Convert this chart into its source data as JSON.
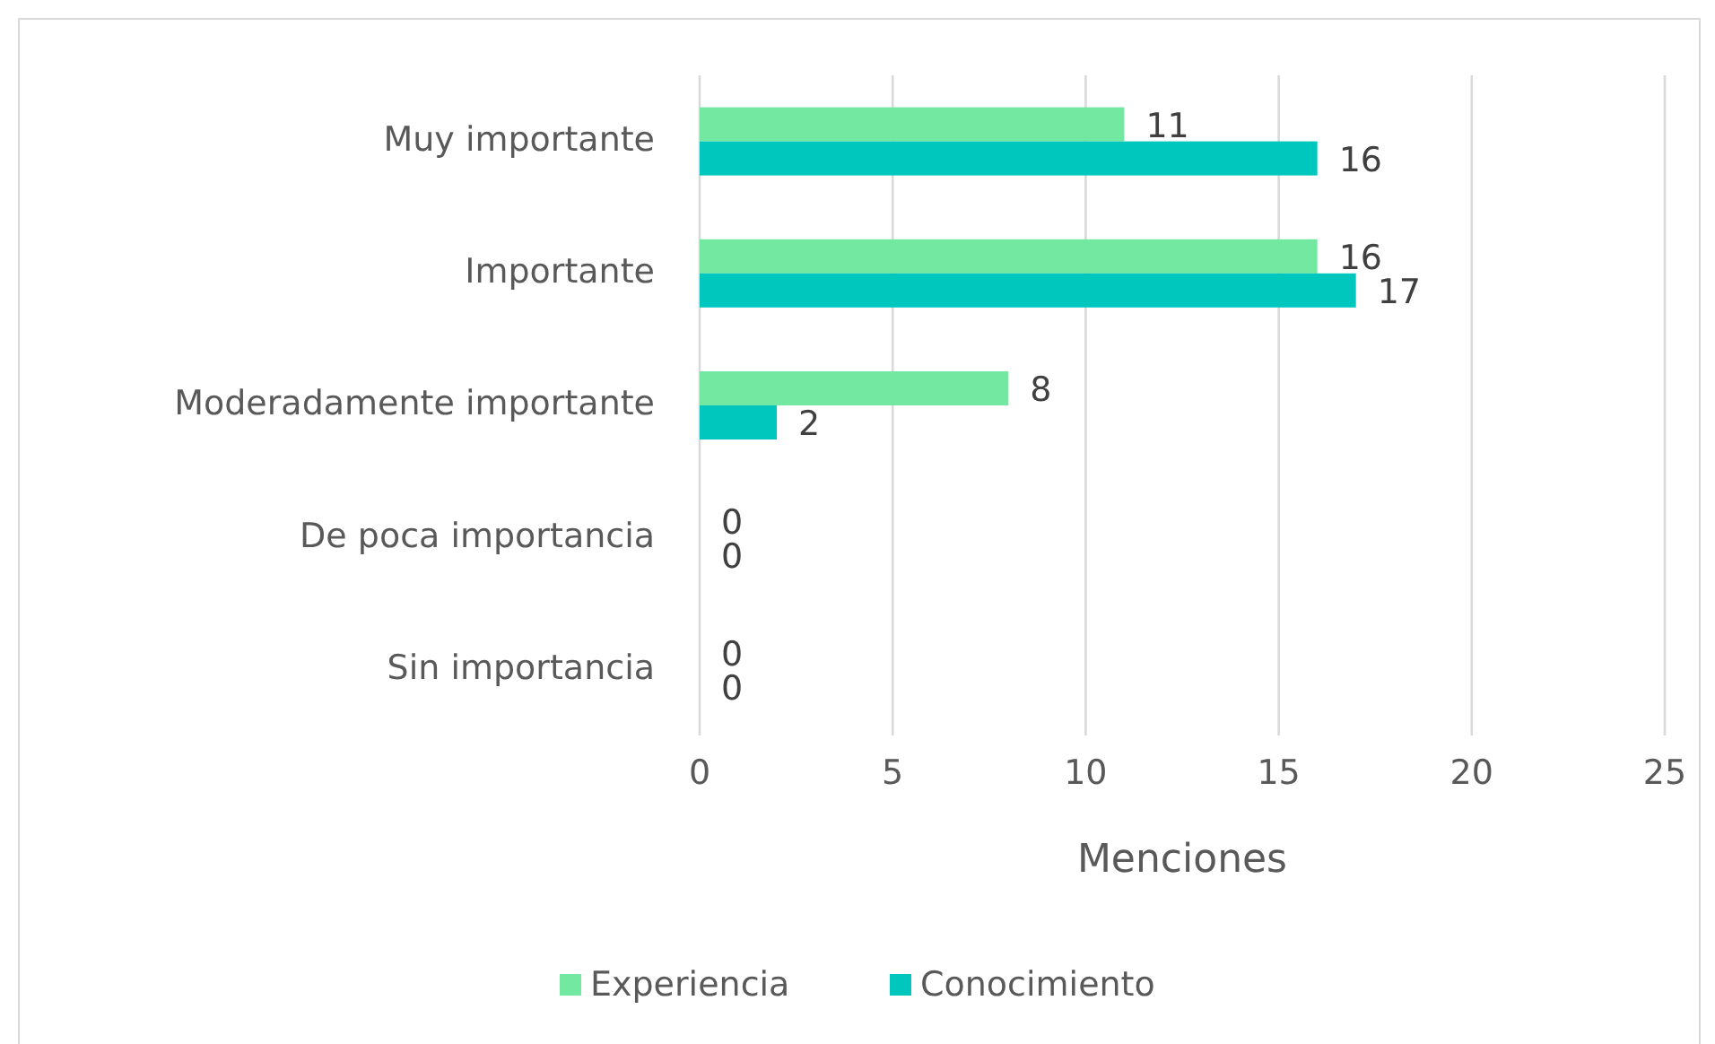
{
  "chart_data": {
    "type": "bar",
    "orientation": "horizontal",
    "xlabel": "Menciones",
    "categories": [
      "Muy importante",
      "Importante",
      "Moderadamente importante",
      "De poca importancia",
      "Sin importancia"
    ],
    "series": [
      {
        "name": "Experiencia",
        "color": "#72e8a0",
        "values": [
          11,
          16,
          8,
          0,
          0
        ]
      },
      {
        "name": "Conocimiento",
        "color": "#00c7bd",
        "values": [
          16,
          17,
          2,
          0,
          0
        ]
      }
    ],
    "xlim": [
      0,
      25
    ],
    "xticks": [
      0,
      5,
      10,
      15,
      20,
      25
    ],
    "grid": "x",
    "legend": "bottom",
    "data_labels": true
  }
}
